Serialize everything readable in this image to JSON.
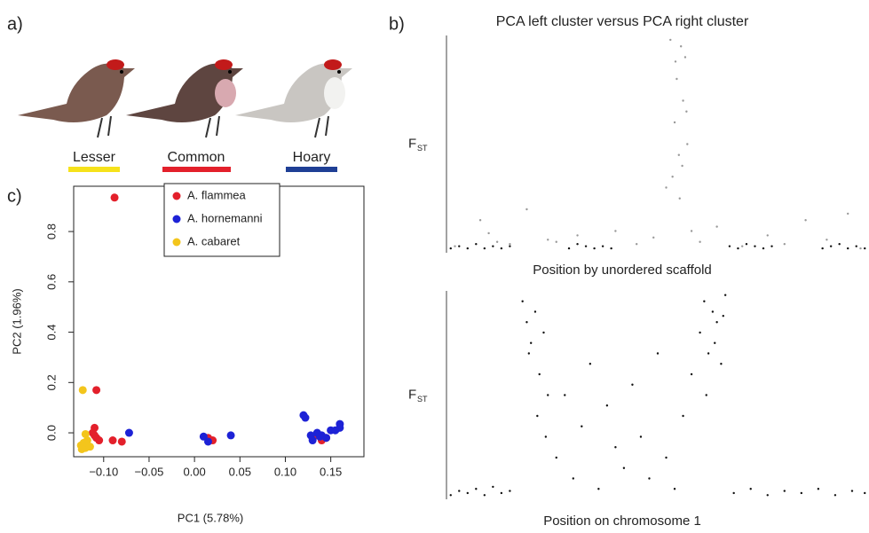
{
  "panel_labels": [
    "a)",
    "b)",
    "c)"
  ],
  "bird_names": [
    "Lesser",
    "Common",
    "Hoary"
  ],
  "chart_data": [
    {
      "type": "scatter",
      "xlabel": "PC1 (5.78%)",
      "ylabel": "PC2 (1.96%)",
      "xlim": [
        -0.133,
        0.1865
      ],
      "ylim": [
        -0.095,
        0.98
      ],
      "xticks": [
        {
          "value": -0.1,
          "label": "−0.10"
        },
        {
          "value": -0.05,
          "label": "−0.05"
        },
        {
          "value": 0,
          "label": "0.00"
        },
        {
          "value": 0.05,
          "label": "0.05"
        },
        {
          "value": 0.1,
          "label": "0.10"
        },
        {
          "value": 0.15,
          "label": "0.15"
        }
      ],
      "yticks": [
        {
          "value": 0,
          "label": "0.0"
        },
        0.2,
        0.4,
        0.6,
        0.8
      ],
      "legend": "top",
      "series": [
        {
          "name": "A. flammea",
          "color": "#e3202b",
          "x": [
            -0.088,
            -0.108,
            -0.11,
            -0.11,
            -0.105,
            -0.09,
            -0.08,
            0.015,
            0.02,
            0.135,
            0.14,
            0.13,
            0.145,
            -0.112,
            -0.108
          ],
          "values": [
            0.935,
            0.17,
            0.02,
            -0.01,
            -0.03,
            -0.03,
            -0.035,
            -0.02,
            -0.03,
            -0.01,
            -0.03,
            -0.02,
            -0.02,
            0.0,
            -0.02
          ]
        },
        {
          "name": "A. hornemanni",
          "color": "#1d22d6",
          "x": [
            -0.072,
            0.01,
            0.015,
            0.04,
            0.12,
            0.122,
            0.128,
            0.13,
            0.135,
            0.14,
            0.145,
            0.15,
            0.16,
            0.16,
            0.155,
            0.138
          ],
          "values": [
            0.0,
            -0.015,
            -0.035,
            -0.01,
            0.07,
            0.06,
            -0.01,
            -0.03,
            0.0,
            -0.01,
            -0.02,
            0.01,
            0.035,
            0.02,
            0.01,
            -0.015
          ]
        },
        {
          "name": "A. cabaret",
          "color": "#f3c51c",
          "x": [
            -0.123,
            -0.12,
            -0.125,
            -0.12,
            -0.122,
            -0.115,
            -0.118,
            -0.124
          ],
          "values": [
            0.17,
            -0.005,
            -0.05,
            -0.06,
            -0.04,
            -0.055,
            -0.03,
            -0.065
          ]
        }
      ]
    },
    {
      "type": "scatter",
      "title": "PCA left cluster versus PCA right cluster",
      "xlabel": "Position by unordered scaffold",
      "ylabel": "F",
      "ylabel_sub": "ST",
      "xlim": [
        0,
        100
      ],
      "ylim": [
        0,
        1
      ],
      "series": [
        {
          "color": "#999999",
          "x": [
            2,
            8,
            12,
            15,
            19,
            24,
            31,
            40,
            45,
            49,
            52,
            53,
            54,
            54.5,
            55,
            55.5,
            56,
            56.5,
            57,
            53.5,
            55.2,
            56.8,
            54.2,
            55.8,
            58,
            60,
            64,
            70,
            76,
            80,
            85,
            90,
            95,
            98,
            26,
            10
          ],
          "values": [
            0.03,
            0.15,
            0.05,
            0.04,
            0.2,
            0.06,
            0.08,
            0.1,
            0.04,
            0.07,
            0.3,
            0.98,
            0.6,
            0.8,
            0.45,
            0.95,
            0.7,
            0.9,
            0.5,
            0.35,
            0.25,
            0.65,
            0.88,
            0.4,
            0.1,
            0.05,
            0.12,
            0.03,
            0.08,
            0.04,
            0.15,
            0.06,
            0.18,
            0.02,
            0.05,
            0.09
          ]
        },
        {
          "color": "#111111",
          "x": [
            1,
            3,
            5,
            7,
            9,
            11,
            13,
            15,
            29,
            31,
            33,
            35,
            37,
            39,
            67,
            69,
            71,
            73,
            75,
            77,
            89,
            91,
            93,
            95,
            97,
            99
          ],
          "values": [
            0.02,
            0.03,
            0.02,
            0.04,
            0.02,
            0.03,
            0.02,
            0.03,
            0.02,
            0.04,
            0.03,
            0.02,
            0.03,
            0.02,
            0.03,
            0.02,
            0.04,
            0.03,
            0.02,
            0.03,
            0.02,
            0.03,
            0.04,
            0.02,
            0.03,
            0.02
          ]
        }
      ]
    },
    {
      "type": "scatter",
      "xlabel": "Position on chromosome 1",
      "ylabel": "F",
      "ylabel_sub": "ST",
      "xlim": [
        0,
        100
      ],
      "ylim": [
        0,
        1
      ],
      "series": [
        {
          "color": "#111111",
          "x": [
            1,
            3,
            5,
            7,
            9,
            11,
            13,
            15,
            18,
            19,
            20,
            21,
            22,
            23,
            24,
            19.5,
            21.5,
            23.5,
            26,
            28,
            30,
            32,
            34,
            36,
            38,
            40,
            42,
            44,
            46,
            48,
            50,
            52,
            54,
            56,
            58,
            60,
            61,
            62,
            63,
            64,
            65,
            66,
            61.5,
            63.5,
            65.5,
            68,
            72,
            76,
            80,
            84,
            88,
            92,
            96,
            99
          ],
          "values": [
            0.02,
            0.04,
            0.03,
            0.05,
            0.02,
            0.06,
            0.03,
            0.04,
            0.95,
            0.85,
            0.75,
            0.9,
            0.6,
            0.8,
            0.5,
            0.7,
            0.4,
            0.3,
            0.2,
            0.5,
            0.1,
            0.35,
            0.65,
            0.05,
            0.45,
            0.25,
            0.15,
            0.55,
            0.3,
            0.1,
            0.7,
            0.2,
            0.05,
            0.4,
            0.6,
            0.8,
            0.95,
            0.7,
            0.9,
            0.85,
            0.65,
            0.98,
            0.5,
            0.75,
            0.88,
            0.03,
            0.05,
            0.02,
            0.04,
            0.03,
            0.05,
            0.02,
            0.04,
            0.03
          ]
        }
      ]
    }
  ]
}
